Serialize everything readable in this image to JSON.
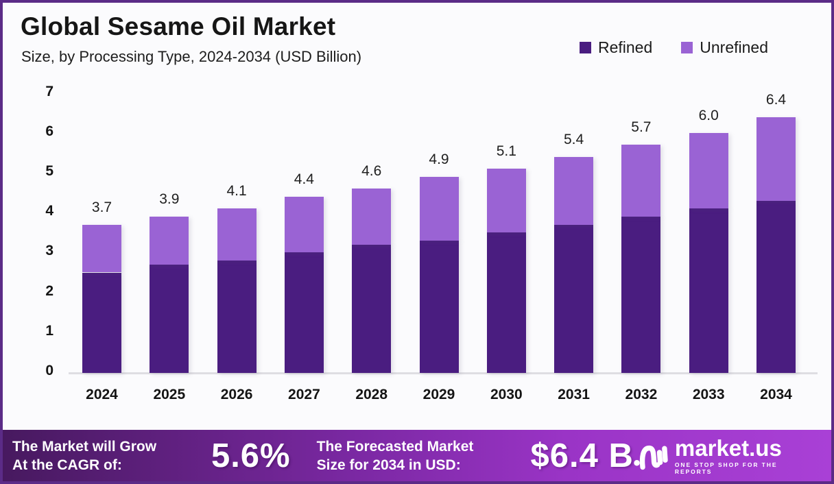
{
  "header": {
    "title": "Global Sesame Oil Market",
    "subtitle": "Size, by Processing Type, 2024-2034 (USD Billion)"
  },
  "legend": {
    "items": [
      {
        "label": "Refined",
        "color": "#4a1d80"
      },
      {
        "label": "Unrefined",
        "color": "#9a63d4"
      }
    ]
  },
  "chart_data": {
    "type": "bar",
    "stacked": true,
    "title": "Global Sesame Oil Market Size, by Processing Type, 2024-2034 (USD Billion)",
    "categories": [
      "2024",
      "2025",
      "2026",
      "2027",
      "2028",
      "2029",
      "2030",
      "2031",
      "2032",
      "2033",
      "2034"
    ],
    "series": [
      {
        "name": "Refined",
        "color": "#4a1d80",
        "values": [
          2.5,
          2.7,
          2.8,
          3.0,
          3.2,
          3.3,
          3.5,
          3.7,
          3.9,
          4.1,
          4.3
        ]
      },
      {
        "name": "Unrefined",
        "color": "#9a63d4",
        "values": [
          1.2,
          1.2,
          1.3,
          1.4,
          1.4,
          1.6,
          1.6,
          1.7,
          1.8,
          1.9,
          2.1
        ]
      }
    ],
    "total_labels": [
      "3.7",
      "3.9",
      "4.1",
      "4.4",
      "4.6",
      "4.9",
      "5.1",
      "5.4",
      "5.7",
      "6.0",
      "6.4"
    ],
    "xlabel": "",
    "ylabel": "",
    "ylim": [
      0,
      7
    ],
    "yticks": [
      0,
      1,
      2,
      3,
      4,
      5,
      6,
      7
    ],
    "grid": false,
    "legend_position": "top-right"
  },
  "footer": {
    "cagr_caption_line1": "The Market will Grow",
    "cagr_caption_line2": "At the CAGR of:",
    "cagr_value": "5.6%",
    "forecast_caption_line1": "The Forecasted Market",
    "forecast_caption_line2": "Size for 2034 in USD:",
    "forecast_value": "$6.4 B",
    "brand_name": "market.us",
    "brand_tagline": "ONE STOP SHOP FOR THE REPORTS"
  },
  "colors": {
    "refined": "#4a1d80",
    "unrefined": "#9a63d4",
    "page_border": "#5b2b87",
    "background": "#fbfbfd",
    "axis_line": "#dedde2",
    "footer_gradient_start": "#47195f",
    "footer_gradient_end": "#a940d6"
  }
}
